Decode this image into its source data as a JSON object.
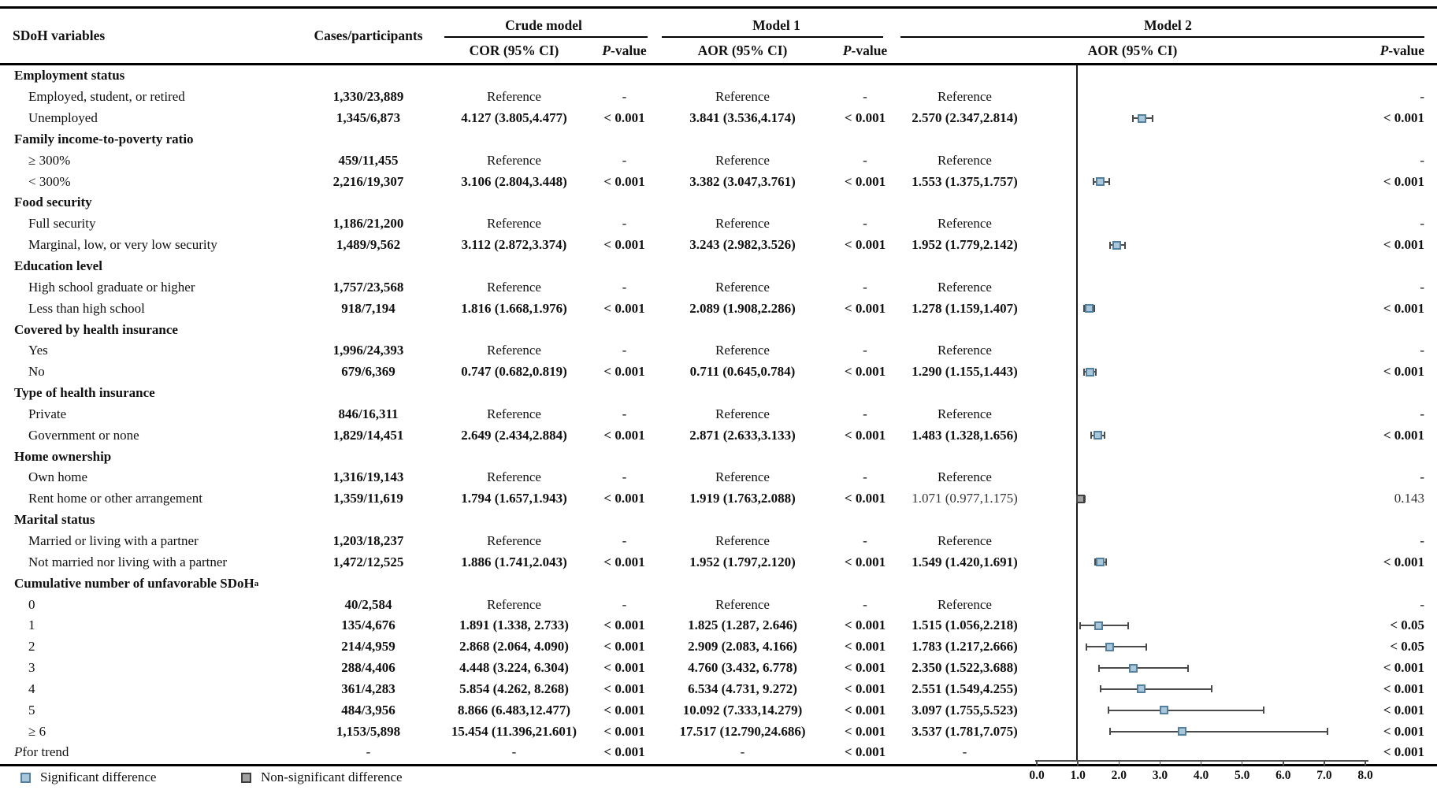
{
  "header": {
    "col_variables": "SDoH variables",
    "col_cases": "Cases/participants",
    "groups": [
      {
        "label": "Crude model",
        "sub_estimate": "COR (95% CI)",
        "sub_p": "P-value"
      },
      {
        "label": "Model 1",
        "sub_estimate": "AOR (95% CI)",
        "sub_p": "P-value"
      },
      {
        "label": "Model 2",
        "sub_estimate": "AOR (95% CI)",
        "sub_p": "P-value"
      }
    ]
  },
  "rows": [
    {
      "type": "group",
      "label": "Employment status"
    },
    {
      "type": "item",
      "label": "Employed, student, or retired",
      "cases": "1,330/23,889",
      "cor": "Reference",
      "p_crude": "-",
      "aor1": "Reference",
      "p_m1": "-",
      "aor2": "Reference",
      "p_m2": "-"
    },
    {
      "type": "item",
      "label": "Unemployed",
      "cases": "1,345/6,873",
      "cor": "4.127 (3.805,4.477)",
      "p_crude": "< 0.001",
      "aor1": "3.841 (3.536,4.174)",
      "p_m1": "< 0.001",
      "aor2": "2.570 (2.347,2.814)",
      "p_m2": "< 0.001",
      "forest": {
        "est": 2.57,
        "lo": 2.347,
        "hi": 2.814,
        "sig": true
      }
    },
    {
      "type": "group",
      "label": "Family income-to-poverty ratio"
    },
    {
      "type": "item",
      "label": "≥ 300%",
      "cases": "459/11,455",
      "cor": "Reference",
      "p_crude": "-",
      "aor1": "Reference",
      "p_m1": "-",
      "aor2": "Reference",
      "p_m2": "-"
    },
    {
      "type": "item",
      "label": "< 300%",
      "cases": "2,216/19,307",
      "cor": "3.106 (2.804,3.448)",
      "p_crude": "< 0.001",
      "aor1": "3.382 (3.047,3.761)",
      "p_m1": "< 0.001",
      "aor2": "1.553 (1.375,1.757)",
      "p_m2": "< 0.001",
      "forest": {
        "est": 1.553,
        "lo": 1.375,
        "hi": 1.757,
        "sig": true
      }
    },
    {
      "type": "group",
      "label": "Food security"
    },
    {
      "type": "item",
      "label": "Full security",
      "cases": "1,186/21,200",
      "cor": "Reference",
      "p_crude": "-",
      "aor1": "Reference",
      "p_m1": "-",
      "aor2": "Reference",
      "p_m2": "-"
    },
    {
      "type": "item",
      "label": "Marginal, low, or very low security",
      "cases": "1,489/9,562",
      "cor": "3.112 (2.872,3.374)",
      "p_crude": "< 0.001",
      "aor1": "3.243 (2.982,3.526)",
      "p_m1": "< 0.001",
      "aor2": "1.952 (1.779,2.142)",
      "p_m2": "< 0.001",
      "forest": {
        "est": 1.952,
        "lo": 1.779,
        "hi": 2.142,
        "sig": true
      }
    },
    {
      "type": "group",
      "label": "Education level"
    },
    {
      "type": "item",
      "label": "High school graduate or higher",
      "cases": "1,757/23,568",
      "cor": "Reference",
      "p_crude": "-",
      "aor1": "Reference",
      "p_m1": "-",
      "aor2": "Reference",
      "p_m2": "-"
    },
    {
      "type": "item",
      "label": "Less than high school",
      "cases": "918/7,194",
      "cor": "1.816 (1.668,1.976)",
      "p_crude": "< 0.001",
      "aor1": "2.089 (1.908,2.286)",
      "p_m1": "< 0.001",
      "aor2": "1.278 (1.159,1.407)",
      "p_m2": "< 0.001",
      "forest": {
        "est": 1.278,
        "lo": 1.159,
        "hi": 1.407,
        "sig": true
      }
    },
    {
      "type": "group",
      "label": "Covered by health insurance"
    },
    {
      "type": "item",
      "label": "Yes",
      "cases": "1,996/24,393",
      "cor": "Reference",
      "p_crude": "-",
      "aor1": "Reference",
      "p_m1": "-",
      "aor2": "Reference",
      "p_m2": "-"
    },
    {
      "type": "item",
      "label": "No",
      "cases": "679/6,369",
      "cor": "0.747 (0.682,0.819)",
      "p_crude": "< 0.001",
      "aor1": "0.711 (0.645,0.784)",
      "p_m1": "< 0.001",
      "aor2": "1.290 (1.155,1.443)",
      "p_m2": "< 0.001",
      "forest": {
        "est": 1.29,
        "lo": 1.155,
        "hi": 1.443,
        "sig": true
      }
    },
    {
      "type": "group",
      "label": "Type of health insurance"
    },
    {
      "type": "item",
      "label": "Private",
      "cases": "846/16,311",
      "cor": "Reference",
      "p_crude": "-",
      "aor1": "Reference",
      "p_m1": "-",
      "aor2": "Reference",
      "p_m2": "-"
    },
    {
      "type": "item",
      "label": "Government or none",
      "cases": "1,829/14,451",
      "cor": "2.649 (2.434,2.884)",
      "p_crude": "< 0.001",
      "aor1": "2.871 (2.633,3.133)",
      "p_m1": "< 0.001",
      "aor2": "1.483 (1.328,1.656)",
      "p_m2": "< 0.001",
      "forest": {
        "est": 1.483,
        "lo": 1.328,
        "hi": 1.656,
        "sig": true
      }
    },
    {
      "type": "group",
      "label": "Home ownership"
    },
    {
      "type": "item",
      "label": "Own home",
      "cases": "1,316/19,143",
      "cor": "Reference",
      "p_crude": "-",
      "aor1": "Reference",
      "p_m1": "-",
      "aor2": "Reference",
      "p_m2": "-"
    },
    {
      "type": "item",
      "label": "Rent home or other arrangement",
      "cases": "1,359/11,619",
      "cor": "1.794 (1.657,1.943)",
      "p_crude": "< 0.001",
      "aor1": "1.919 (1.763,2.088)",
      "p_m1": "< 0.001",
      "aor2": "1.071 (0.977,1.175)",
      "p_m2": "0.143",
      "plain": [
        "aor2",
        "p_m2"
      ],
      "forest": {
        "est": 1.071,
        "lo": 0.977,
        "hi": 1.175,
        "sig": false
      }
    },
    {
      "type": "group",
      "label": "Marital status"
    },
    {
      "type": "item",
      "label": "Married or living with a partner",
      "cases": "1,203/18,237",
      "cor": "Reference",
      "p_crude": "-",
      "aor1": "Reference",
      "p_m1": "-",
      "aor2": "Reference",
      "p_m2": "-"
    },
    {
      "type": "item",
      "label": "Not married nor living with a partner",
      "cases": "1,472/12,525",
      "cor": "1.886 (1.741,2.043)",
      "p_crude": "< 0.001",
      "aor1": "1.952 (1.797,2.120)",
      "p_m1": "< 0.001",
      "aor2": "1.549 (1.420,1.691)",
      "p_m2": "< 0.001",
      "forest": {
        "est": 1.549,
        "lo": 1.42,
        "hi": 1.691,
        "sig": true
      }
    },
    {
      "type": "group",
      "label": "Cumulative number of unfavorable SDoH",
      "sup": "a"
    },
    {
      "type": "item",
      "label": "0",
      "cases": "40/2,584",
      "cor": "Reference",
      "p_crude": "-",
      "aor1": "Reference",
      "p_m1": "-",
      "aor2": "Reference",
      "p_m2": "-"
    },
    {
      "type": "item",
      "label": "1",
      "cases": "135/4,676",
      "cor": "1.891 (1.338, 2.733)",
      "p_crude": "< 0.001",
      "aor1": "1.825 (1.287, 2.646)",
      "p_m1": "< 0.001",
      "aor2": "1.515 (1.056,2.218)",
      "p_m2": "< 0.05",
      "forest": {
        "est": 1.515,
        "lo": 1.056,
        "hi": 2.218,
        "sig": true
      }
    },
    {
      "type": "item",
      "label": "2",
      "cases": "214/4,959",
      "cor": "2.868 (2.064, 4.090)",
      "p_crude": "< 0.001",
      "aor1": "2.909 (2.083, 4.166)",
      "p_m1": "< 0.001",
      "aor2": "1.783 (1.217,2.666)",
      "p_m2": "< 0.05",
      "forest": {
        "est": 1.783,
        "lo": 1.217,
        "hi": 2.666,
        "sig": true
      }
    },
    {
      "type": "item",
      "label": "3",
      "cases": "288/4,406",
      "cor": "4.448 (3.224, 6.304)",
      "p_crude": "< 0.001",
      "aor1": "4.760 (3.432, 6.778)",
      "p_m1": "< 0.001",
      "aor2": "2.350 (1.522,3.688)",
      "p_m2": "< 0.001",
      "forest": {
        "est": 2.35,
        "lo": 1.522,
        "hi": 3.688,
        "sig": true
      }
    },
    {
      "type": "item",
      "label": "4",
      "cases": "361/4,283",
      "cor": "5.854 (4.262, 8.268)",
      "p_crude": "< 0.001",
      "aor1": "6.534 (4.731, 9.272)",
      "p_m1": "< 0.001",
      "aor2": "2.551 (1.549,4.255)",
      "p_m2": "< 0.001",
      "forest": {
        "est": 2.551,
        "lo": 1.549,
        "hi": 4.255,
        "sig": true
      }
    },
    {
      "type": "item",
      "label": "5",
      "cases": "484/3,956",
      "cor": "8.866 (6.483,12.477)",
      "p_crude": "< 0.001",
      "aor1": "10.092 (7.333,14.279)",
      "p_m1": "< 0.001",
      "aor2": "3.097 (1.755,5.523)",
      "p_m2": "< 0.001",
      "forest": {
        "est": 3.097,
        "lo": 1.755,
        "hi": 5.523,
        "sig": true
      }
    },
    {
      "type": "item",
      "label": "≥ 6",
      "cases": "1,153/5,898",
      "cor": "15.454 (11.396,21.601)",
      "p_crude": "< 0.001",
      "aor1": "17.517 (12.790,24.686)",
      "p_m1": "< 0.001",
      "aor2": "3.537 (1.781,7.075)",
      "p_m2": "< 0.001",
      "forest": {
        "est": 3.537,
        "lo": 1.781,
        "hi": 7.075,
        "sig": true
      }
    },
    {
      "type": "trend",
      "label": "P for trend",
      "italic_first": true,
      "cases": "-",
      "cor": "-",
      "p_crude": "< 0.001",
      "aor1": "-",
      "p_m1": "< 0.001",
      "aor2": "-",
      "p_m2": "< 0.001"
    }
  ],
  "legend": {
    "items": [
      {
        "label": "Significant difference",
        "fill": "#aac7d9",
        "border": "#53809e"
      },
      {
        "label": "Non-significant difference",
        "fill": "#a0a0a0",
        "border": "#3f3f3f"
      }
    ]
  },
  "chart_data": {
    "type": "forest",
    "title": "",
    "xlabel": "",
    "x_axis": {
      "min": 0.0,
      "max": 8.0,
      "tick_interval": 1.0,
      "tick_labels": [
        "0.0",
        "1.0",
        "2.0",
        "3.0",
        "4.0",
        "5.0",
        "6.0",
        "7.0",
        "8.0"
      ],
      "reference_line": 1.0
    },
    "legend_position": "bottom-left",
    "series": [
      {
        "name": "Model 2 AOR (95% CI)",
        "points": [
          {
            "label": "Unemployed",
            "est": 2.57,
            "lo": 2.347,
            "hi": 2.814,
            "significant": true
          },
          {
            "label": "< 300%",
            "est": 1.553,
            "lo": 1.375,
            "hi": 1.757,
            "significant": true
          },
          {
            "label": "Marginal, low, or very low security",
            "est": 1.952,
            "lo": 1.779,
            "hi": 2.142,
            "significant": true
          },
          {
            "label": "Less than high school",
            "est": 1.278,
            "lo": 1.159,
            "hi": 1.407,
            "significant": true
          },
          {
            "label": "No health insurance",
            "est": 1.29,
            "lo": 1.155,
            "hi": 1.443,
            "significant": true
          },
          {
            "label": "Government or none",
            "est": 1.483,
            "lo": 1.328,
            "hi": 1.656,
            "significant": true
          },
          {
            "label": "Rent home or other arrangement",
            "est": 1.071,
            "lo": 0.977,
            "hi": 1.175,
            "significant": false
          },
          {
            "label": "Not married nor living with a partner",
            "est": 1.549,
            "lo": 1.42,
            "hi": 1.691,
            "significant": true
          },
          {
            "label": "Cumulative SDoH 1",
            "est": 1.515,
            "lo": 1.056,
            "hi": 2.218,
            "significant": true
          },
          {
            "label": "Cumulative SDoH 2",
            "est": 1.783,
            "lo": 1.217,
            "hi": 2.666,
            "significant": true
          },
          {
            "label": "Cumulative SDoH 3",
            "est": 2.35,
            "lo": 1.522,
            "hi": 3.688,
            "significant": true
          },
          {
            "label": "Cumulative SDoH 4",
            "est": 2.551,
            "lo": 1.549,
            "hi": 4.255,
            "significant": true
          },
          {
            "label": "Cumulative SDoH 5",
            "est": 3.097,
            "lo": 1.755,
            "hi": 5.523,
            "significant": true
          },
          {
            "label": "Cumulative SDoH ≥ 6",
            "est": 3.537,
            "lo": 1.781,
            "hi": 7.075,
            "significant": true
          }
        ]
      }
    ],
    "colors": {
      "significant_fill": "#aac7d9",
      "significant_border": "#53809e",
      "nonsignificant_fill": "#a0a0a0",
      "nonsignificant_border": "#3f3f3f",
      "ci_line": "#4a4a4a",
      "reference_line": "#000000"
    }
  }
}
